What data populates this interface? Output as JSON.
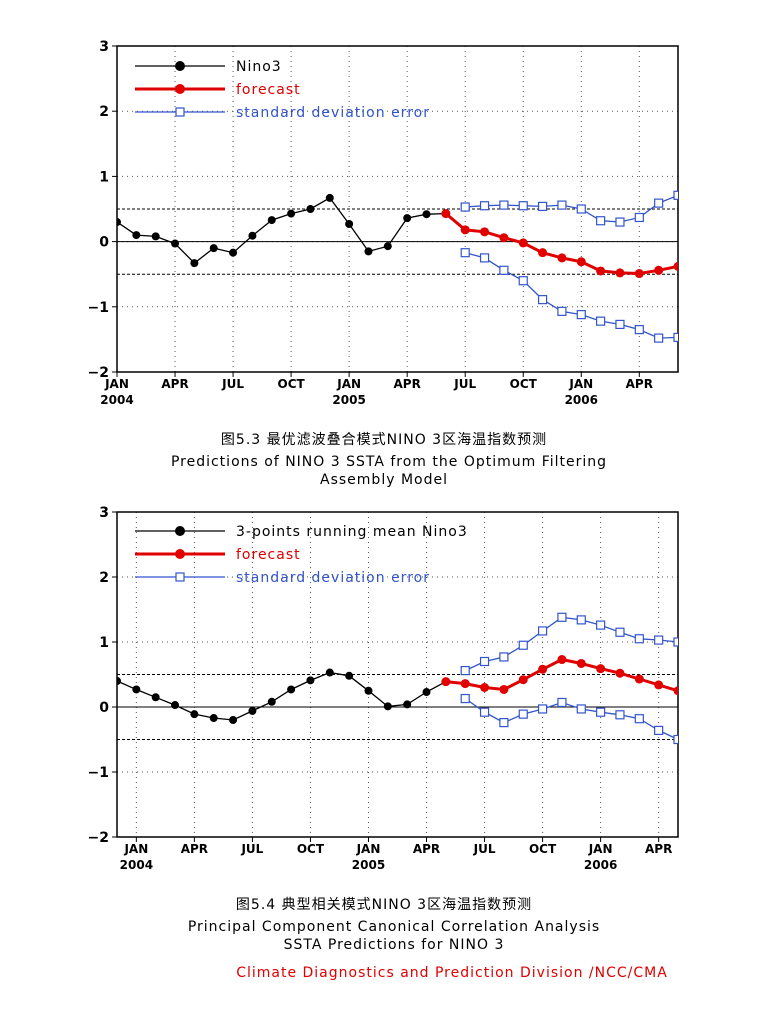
{
  "chart_data": [
    {
      "type": "line",
      "caption_cn": "图5.3 最优滤波叠合模式NINO 3区海温指数预测",
      "caption_en_1": "Predictions of NINO 3 SSTA from the Optimum Filtering",
      "caption_en_2": "Assembly Model",
      "ylim": [
        -2,
        3
      ],
      "yticks": [
        "3",
        "2",
        "1",
        "0",
        "−1",
        "−2"
      ],
      "ytick_values": [
        3,
        2,
        1,
        0,
        -1,
        -2
      ],
      "xrange_months": [
        0,
        29
      ],
      "xticks": [
        {
          "m": 0,
          "label": "JAN",
          "year": "2004"
        },
        {
          "m": 3,
          "label": "APR",
          "year": ""
        },
        {
          "m": 6,
          "label": "JUL",
          "year": ""
        },
        {
          "m": 9,
          "label": "OCT",
          "year": ""
        },
        {
          "m": 12,
          "label": "JAN",
          "year": "2005"
        },
        {
          "m": 15,
          "label": "APR",
          "year": ""
        },
        {
          "m": 18,
          "label": "JUL",
          "year": ""
        },
        {
          "m": 21,
          "label": "OCT",
          "year": ""
        },
        {
          "m": 24,
          "label": "JAN",
          "year": "2006"
        },
        {
          "m": 27,
          "label": "APR",
          "year": ""
        }
      ],
      "reference_lines": [
        0.5,
        0,
        -0.5
      ],
      "series": [
        {
          "name": "Nino3",
          "color": "#000000",
          "style": "observed",
          "x": [
            0,
            1,
            2,
            3,
            4,
            5,
            6,
            7,
            8,
            9,
            10,
            11,
            12,
            13,
            14,
            15,
            16,
            17
          ],
          "values": [
            0.3,
            0.1,
            0.08,
            -0.03,
            -0.33,
            -0.1,
            -0.17,
            0.09,
            0.33,
            0.43,
            0.5,
            0.67,
            0.27,
            -0.15,
            -0.07,
            0.36,
            0.42,
            0.43
          ]
        },
        {
          "name": "forecast",
          "color": "#e00000",
          "style": "forecast",
          "x": [
            17,
            18,
            19,
            20,
            21,
            22,
            23,
            24,
            25,
            26,
            27,
            28,
            29
          ],
          "values": [
            0.43,
            0.18,
            0.15,
            0.06,
            -0.02,
            -0.17,
            -0.25,
            -0.31,
            -0.45,
            -0.48,
            -0.49,
            -0.44,
            -0.38
          ]
        },
        {
          "name": "standard deviation error",
          "color": "#3355cc",
          "style": "error",
          "x": [
            18,
            19,
            20,
            21,
            22,
            23,
            24,
            25,
            26,
            27,
            28,
            29
          ],
          "values": [
            0.53,
            0.55,
            0.56,
            0.55,
            0.54,
            0.56,
            0.5,
            0.32,
            0.3,
            0.37,
            0.59,
            0.71
          ]
        },
        {
          "name": "",
          "color": "#3355cc",
          "style": "error",
          "x": [
            18,
            19,
            20,
            21,
            22,
            23,
            24,
            25,
            26,
            27,
            28,
            29
          ],
          "values": [
            -0.17,
            -0.25,
            -0.44,
            -0.6,
            -0.89,
            -1.07,
            -1.12,
            -1.22,
            -1.27,
            -1.35,
            -1.48,
            -1.47
          ]
        }
      ]
    },
    {
      "type": "line",
      "caption_cn": "图5.4 典型相关模式NINO 3区海温指数预测",
      "caption_en_1": "Principal Component Canonical Correlation Analysis",
      "caption_en_2": "SSTA Predictions for NINO 3",
      "ylim": [
        -2,
        3
      ],
      "yticks": [
        "3",
        "2",
        "1",
        "0",
        "−1",
        "−2"
      ],
      "ytick_values": [
        3,
        2,
        1,
        0,
        -1,
        -2
      ],
      "xrange_months": [
        0,
        29
      ],
      "xticks": [
        {
          "m": 1,
          "label": "JAN",
          "year": "2004"
        },
        {
          "m": 4,
          "label": "APR",
          "year": ""
        },
        {
          "m": 7,
          "label": "JUL",
          "year": ""
        },
        {
          "m": 10,
          "label": "OCT",
          "year": ""
        },
        {
          "m": 13,
          "label": "JAN",
          "year": "2005"
        },
        {
          "m": 16,
          "label": "APR",
          "year": ""
        },
        {
          "m": 19,
          "label": "JUL",
          "year": ""
        },
        {
          "m": 22,
          "label": "OCT",
          "year": ""
        },
        {
          "m": 25,
          "label": "JAN",
          "year": "2006"
        },
        {
          "m": 28,
          "label": "APR",
          "year": ""
        }
      ],
      "reference_lines": [
        0.5,
        0,
        -0.5
      ],
      "series": [
        {
          "name": "3-points running mean Nino3",
          "color": "#000000",
          "style": "observed",
          "x": [
            0,
            1,
            2,
            3,
            4,
            5,
            6,
            7,
            8,
            9,
            10,
            11,
            12,
            13,
            14,
            15,
            16,
            17
          ],
          "values": [
            0.4,
            0.27,
            0.15,
            0.03,
            -0.11,
            -0.17,
            -0.2,
            -0.06,
            0.08,
            0.27,
            0.41,
            0.53,
            0.48,
            0.25,
            0.01,
            0.04,
            0.23,
            0.39
          ]
        },
        {
          "name": "forecast",
          "color": "#e00000",
          "style": "forecast",
          "x": [
            17,
            18,
            19,
            20,
            21,
            22,
            23,
            24,
            25,
            26,
            27,
            28,
            29
          ],
          "values": [
            0.39,
            0.36,
            0.3,
            0.27,
            0.42,
            0.58,
            0.73,
            0.67,
            0.59,
            0.52,
            0.43,
            0.34,
            0.25
          ]
        },
        {
          "name": "standard deviation error",
          "color": "#3355cc",
          "style": "error",
          "x": [
            18,
            19,
            20,
            21,
            22,
            23,
            24,
            25,
            26,
            27,
            28,
            29
          ],
          "values": [
            0.56,
            0.7,
            0.77,
            0.95,
            1.17,
            1.38,
            1.34,
            1.26,
            1.15,
            1.05,
            1.03,
            1.0
          ]
        },
        {
          "name": "",
          "color": "#3355cc",
          "style": "error",
          "x": [
            18,
            19,
            20,
            21,
            22,
            23,
            24,
            25,
            26,
            27,
            28,
            29
          ],
          "values": [
            0.13,
            -0.08,
            -0.24,
            -0.11,
            -0.03,
            0.07,
            -0.03,
            -0.08,
            -0.12,
            -0.18,
            -0.36,
            -0.5
          ]
        }
      ]
    }
  ],
  "credit": "Climate Diagnostics and Prediction Division /NCC/CMA"
}
